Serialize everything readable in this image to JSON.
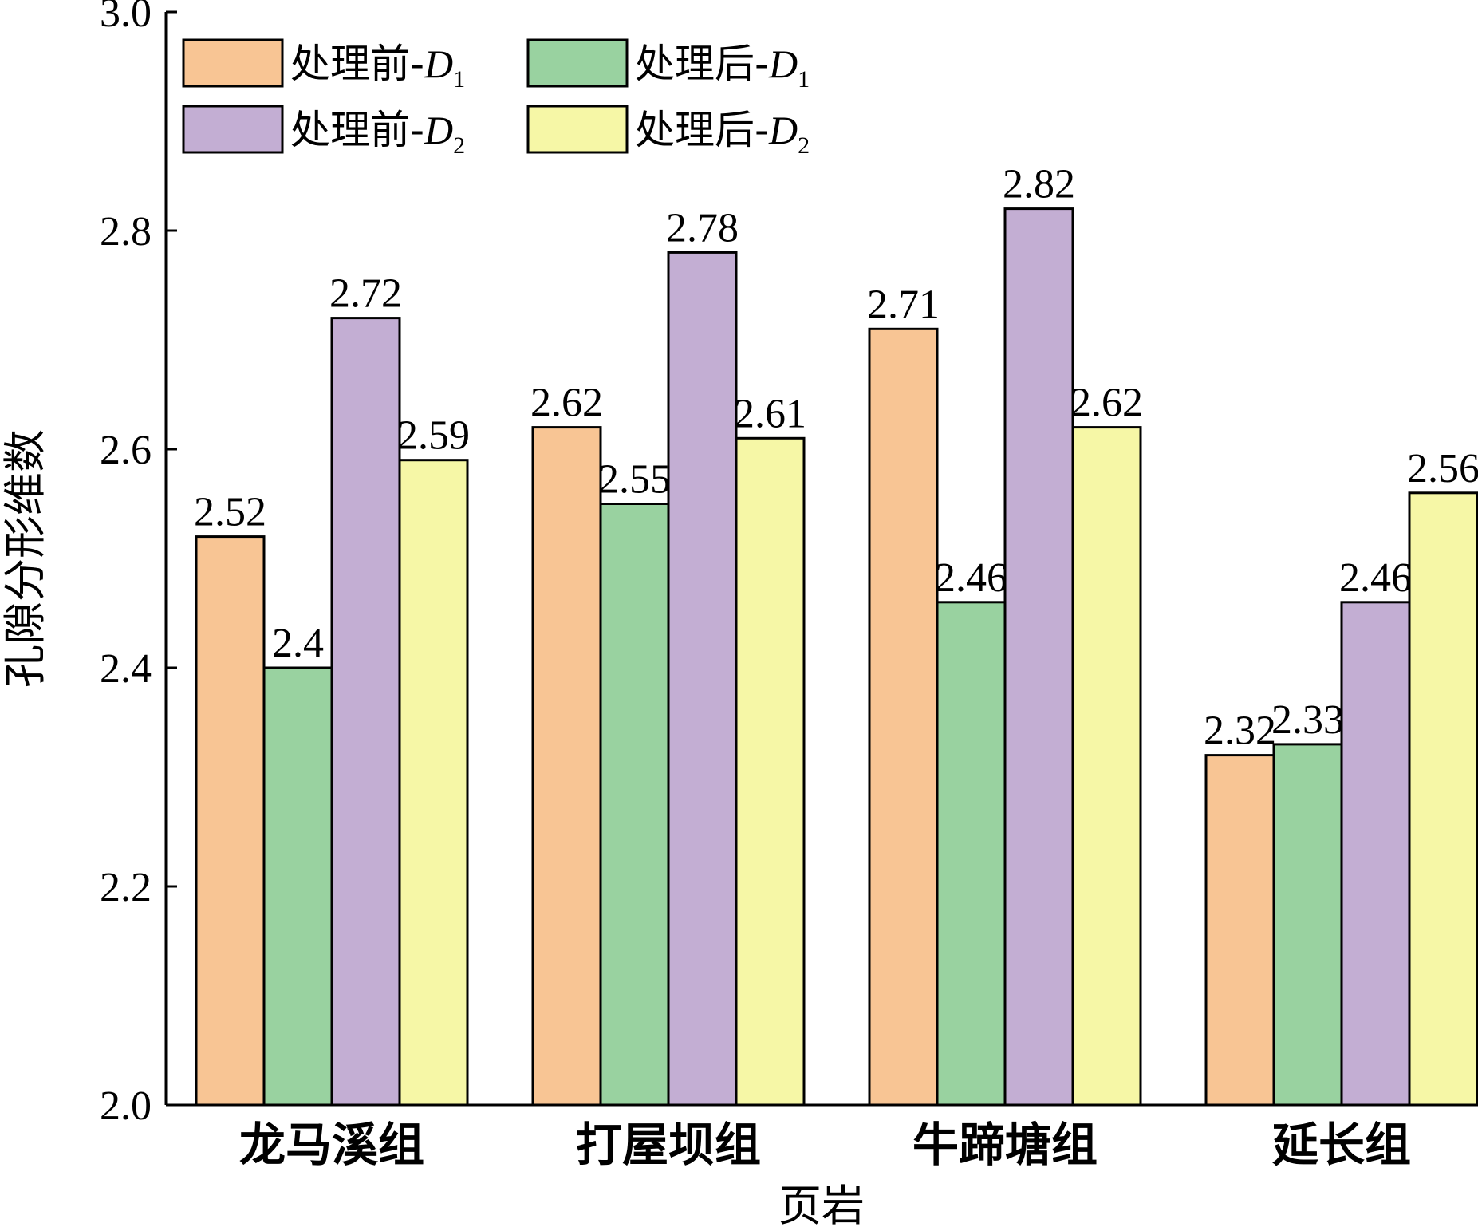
{
  "chart_data": {
    "type": "bar",
    "title": "",
    "xlabel": "页岩",
    "ylabel": "孔隙分形维数",
    "ylim": [
      2.0,
      3.0
    ],
    "yticks": [
      "2.0",
      "2.2",
      "2.4",
      "2.6",
      "2.8",
      "3.0"
    ],
    "categories": [
      "龙马溪组",
      "打屋坝组",
      "牛蹄塘组",
      "延长组"
    ],
    "series": [
      {
        "name": "处理前-D1",
        "label_main": "处理前-",
        "label_var": "D",
        "label_sub": "1",
        "color": "#f8c594",
        "values": [
          2.52,
          2.62,
          2.71,
          2.32
        ],
        "labels": [
          "2.52",
          "2.62",
          "2.71",
          "2.32"
        ]
      },
      {
        "name": "处理后-D1",
        "label_main": "处理后-",
        "label_var": "D",
        "label_sub": "1",
        "color": "#99d2a0",
        "values": [
          2.4,
          2.55,
          2.46,
          2.33
        ],
        "labels": [
          "2.4",
          "2.55",
          "2.46",
          "2.33"
        ]
      },
      {
        "name": "处理前-D2",
        "label_main": "处理前-",
        "label_var": "D",
        "label_sub": "2",
        "color": "#c3aed3",
        "values": [
          2.72,
          2.78,
          2.82,
          2.46
        ],
        "labels": [
          "2.72",
          "2.78",
          "2.82",
          "2.46"
        ]
      },
      {
        "name": "处理后-D2",
        "label_main": "处理后-",
        "label_var": "D",
        "label_sub": "2",
        "color": "#f6f7a6",
        "values": [
          2.59,
          2.61,
          2.62,
          2.56
        ],
        "labels": [
          "2.59",
          "2.61",
          "2.62",
          "2.56"
        ]
      }
    ],
    "grid": false,
    "legend_position": "top-left"
  }
}
